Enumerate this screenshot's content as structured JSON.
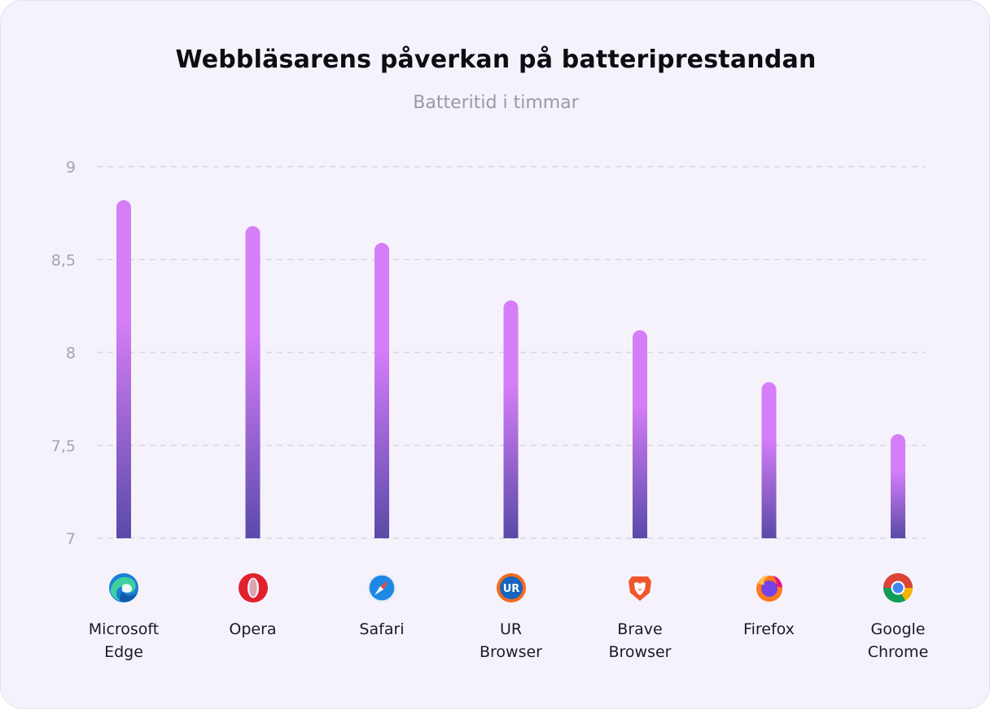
{
  "chart_data": {
    "type": "bar",
    "title": "Webbläsarens påverkan på batteriprestandan",
    "subtitle": "Batteritid i timmar",
    "categories": [
      "Microsoft\nEdge",
      "Opera",
      "Safari",
      "UR\nBrowser",
      "Brave\nBrowser",
      "Firefox",
      "Google\nChrome"
    ],
    "values": [
      8.82,
      8.68,
      8.59,
      8.28,
      8.12,
      7.84,
      7.56
    ],
    "yticks": [
      "9",
      "8,5",
      "8",
      "7,5",
      "7"
    ],
    "ylim": [
      7,
      9
    ],
    "grid": true,
    "bar_gradient": [
      "#d67ef8",
      "#5a4aa8"
    ],
    "icons": [
      "edge-icon",
      "opera-icon",
      "safari-icon",
      "ur-browser-icon",
      "brave-icon",
      "firefox-icon",
      "chrome-icon"
    ]
  }
}
